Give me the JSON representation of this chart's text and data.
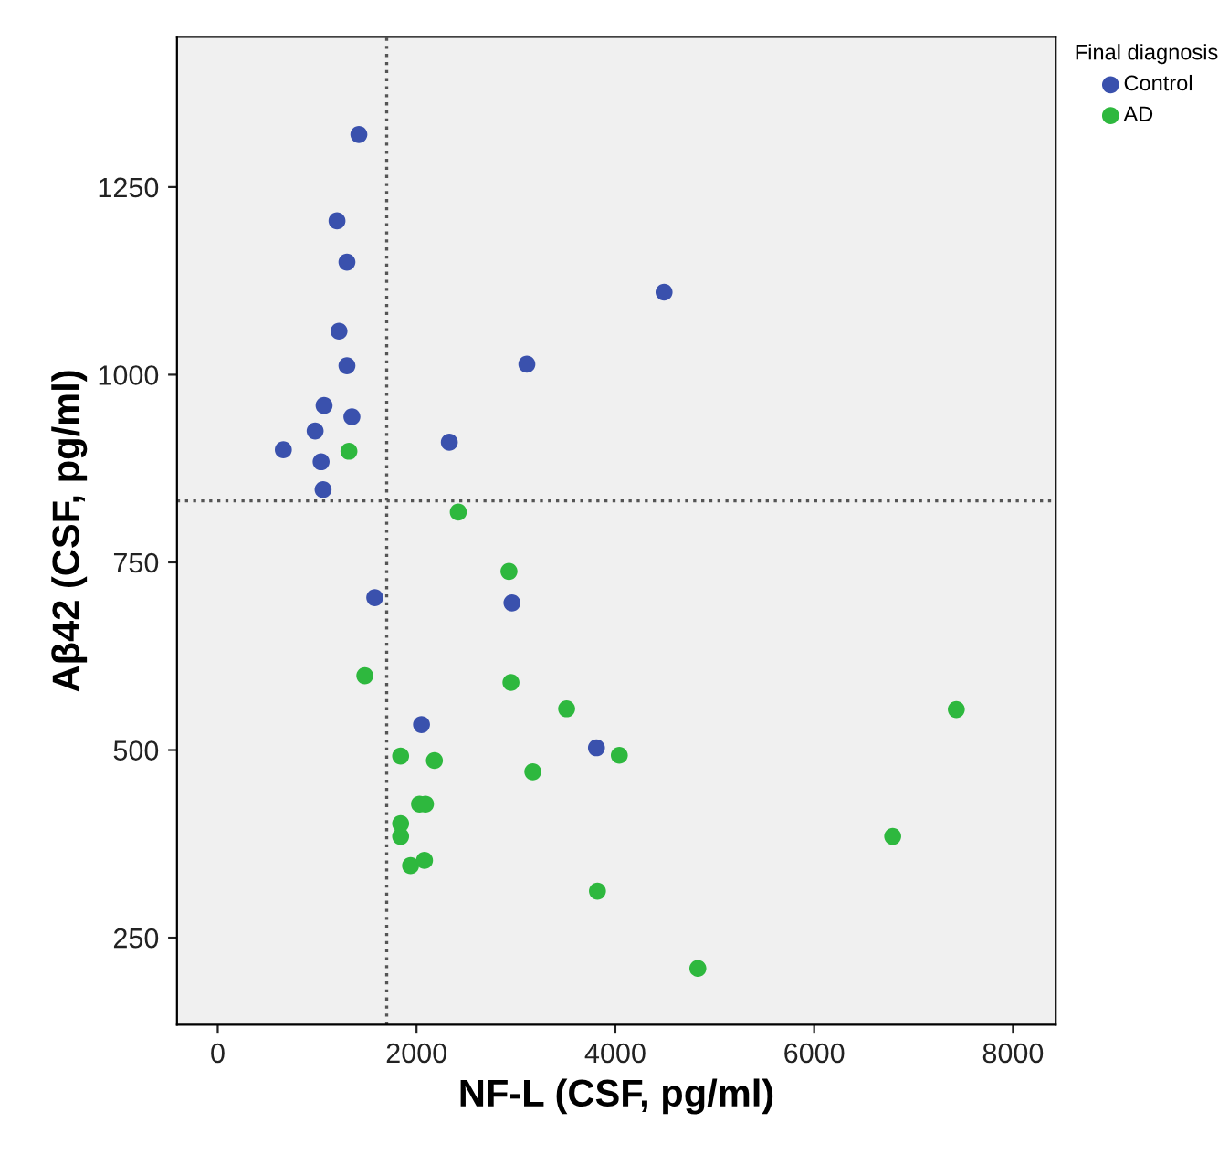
{
  "chart_data": {
    "type": "scatter",
    "xlabel": "NF-L (CSF, pg/ml)",
    "ylabel": "Aβ42 (CSF, pg/ml)",
    "legend_title": "Final diagnosis",
    "legend": "top right",
    "marker": "circle",
    "grid": false,
    "xlim": [
      -410,
      8430
    ],
    "ylim": [
      134,
      1450
    ],
    "xticks": [
      0,
      2000,
      4000,
      6000,
      8000
    ],
    "yticks": [
      250,
      500,
      750,
      1000,
      1250
    ],
    "series": [
      {
        "name": "Control",
        "color": "#3a51ad",
        "x": [
          1420,
          1200,
          1300,
          4490,
          1220,
          1300,
          3110,
          1070,
          1350,
          980,
          660,
          1040,
          1060,
          2330,
          1580,
          2960,
          2050,
          3810
        ],
        "values": [
          1320,
          1205,
          1150,
          1110,
          1058,
          1012,
          1014,
          959,
          944,
          925,
          900,
          884,
          847,
          910,
          703,
          696,
          534,
          503
        ]
      },
      {
        "name": "AD",
        "color": "#2eb83e",
        "x": [
          1320,
          2420,
          2930,
          1480,
          2950,
          3510,
          7430,
          4040,
          1840,
          2180,
          3170,
          2030,
          2090,
          1840,
          1840,
          6790,
          1940,
          2080,
          3820,
          4830
        ],
        "values": [
          898,
          817,
          738,
          599,
          590,
          555,
          554,
          493,
          492,
          486,
          471,
          428,
          428,
          402,
          385,
          385,
          346,
          353,
          312,
          209
        ]
      }
    ],
    "ref_lines": [
      {
        "axis": "x",
        "value": 1700,
        "color": "#555555",
        "line_style": "dotted"
      },
      {
        "axis": "y",
        "value": 832,
        "color": "#555555",
        "line_style": "dotted"
      }
    ]
  }
}
